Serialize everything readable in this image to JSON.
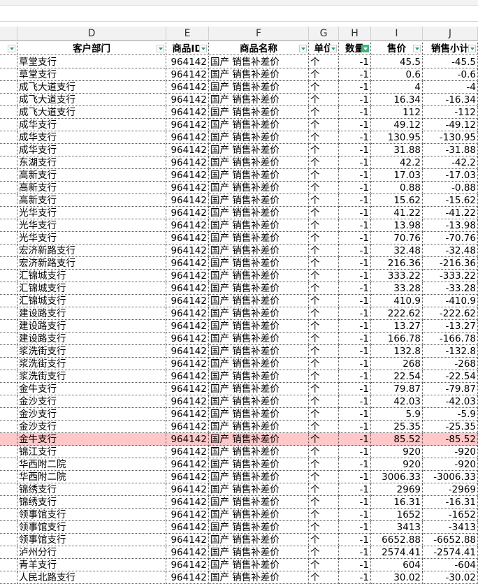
{
  "columns": [
    "D",
    "E",
    "F",
    "G",
    "H",
    "I",
    "J"
  ],
  "headers": [
    "客户部门",
    "商品ID",
    "商品名称",
    "单位",
    "数量",
    "售价",
    "销售小计"
  ],
  "filter_active_column": "H",
  "highlight_color": "#ffc7c7",
  "rows": [
    [
      "草堂支行",
      "964142",
      "国产 销售补差价",
      "个",
      "-1",
      "45.5",
      "-45.5"
    ],
    [
      "草堂支行",
      "964142",
      "国产 销售补差价",
      "个",
      "-1",
      "0.6",
      "-0.6"
    ],
    [
      "成飞大道支行",
      "964142",
      "国产 销售补差价",
      "个",
      "-1",
      "4",
      "-4"
    ],
    [
      "成飞大道支行",
      "964142",
      "国产 销售补差价",
      "个",
      "-1",
      "16.34",
      "-16.34"
    ],
    [
      "成飞大道支行",
      "964142",
      "国产 销售补差价",
      "个",
      "-1",
      "112",
      "-112"
    ],
    [
      "成华支行",
      "964142",
      "国产 销售补差价",
      "个",
      "-1",
      "49.12",
      "-49.12"
    ],
    [
      "成华支行",
      "964142",
      "国产 销售补差价",
      "个",
      "-1",
      "130.95",
      "-130.95"
    ],
    [
      "成华支行",
      "964142",
      "国产 销售补差价",
      "个",
      "-1",
      "31.88",
      "-31.88"
    ],
    [
      "东湖支行",
      "964142",
      "国产 销售补差价",
      "个",
      "-1",
      "42.2",
      "-42.2"
    ],
    [
      "高新支行",
      "964142",
      "国产 销售补差价",
      "个",
      "-1",
      "17.03",
      "-17.03"
    ],
    [
      "高新支行",
      "964142",
      "国产 销售补差价",
      "个",
      "-1",
      "0.88",
      "-0.88"
    ],
    [
      "高新支行",
      "964142",
      "国产 销售补差价",
      "个",
      "-1",
      "15.62",
      "-15.62"
    ],
    [
      "光华支行",
      "964142",
      "国产 销售补差价",
      "个",
      "-1",
      "41.22",
      "-41.22"
    ],
    [
      "光华支行",
      "964142",
      "国产 销售补差价",
      "个",
      "-1",
      "13.98",
      "-13.98"
    ],
    [
      "光华支行",
      "964142",
      "国产 销售补差价",
      "个",
      "-1",
      "70.76",
      "-70.76"
    ],
    [
      "宏济新路支行",
      "964142",
      "国产 销售补差价",
      "个",
      "-1",
      "32.48",
      "-32.48"
    ],
    [
      "宏济新路支行",
      "964142",
      "国产 销售补差价",
      "个",
      "-1",
      "216.36",
      "-216.36"
    ],
    [
      "汇锦城支行",
      "964142",
      "国产 销售补差价",
      "个",
      "-1",
      "333.22",
      "-333.22"
    ],
    [
      "汇锦城支行",
      "964142",
      "国产 销售补差价",
      "个",
      "-1",
      "33.28",
      "-33.28"
    ],
    [
      "汇锦城支行",
      "964142",
      "国产 销售补差价",
      "个",
      "-1",
      "410.9",
      "-410.9"
    ],
    [
      "建设路支行",
      "964142",
      "国产 销售补差价",
      "个",
      "-1",
      "222.62",
      "-222.62"
    ],
    [
      "建设路支行",
      "964142",
      "国产 销售补差价",
      "个",
      "-1",
      "13.27",
      "-13.27"
    ],
    [
      "建设路支行",
      "964142",
      "国产 销售补差价",
      "个",
      "-1",
      "166.78",
      "-166.78"
    ],
    [
      "浆洗街支行",
      "964142",
      "国产 销售补差价",
      "个",
      "-1",
      "132.8",
      "-132.8"
    ],
    [
      "浆洗街支行",
      "964142",
      "国产 销售补差价",
      "个",
      "-1",
      "268",
      "-268"
    ],
    [
      "浆洗街支行",
      "964142",
      "国产 销售补差价",
      "个",
      "-1",
      "22.54",
      "-22.54"
    ],
    [
      "金牛支行",
      "964142",
      "国产 销售补差价",
      "个",
      "-1",
      "79.87",
      "-79.87"
    ],
    [
      "金沙支行",
      "964142",
      "国产 销售补差价",
      "个",
      "-1",
      "42.03",
      "-42.03"
    ],
    [
      "金沙支行",
      "964142",
      "国产 销售补差价",
      "个",
      "-1",
      "5.9",
      "-5.9"
    ],
    [
      "金沙支行",
      "964142",
      "国产 销售补差价",
      "个",
      "-1",
      "25.35",
      "-25.35"
    ],
    [
      "金牛支行",
      "964142",
      "国产 销售补差价",
      "个",
      "-1",
      "85.52",
      "-85.52"
    ],
    [
      "锦江支行",
      "964142",
      "国产 销售补差价",
      "个",
      "-1",
      "920",
      "-920"
    ],
    [
      "华西附二院",
      "964142",
      "国产 销售补差价",
      "个",
      "-1",
      "920",
      "-920"
    ],
    [
      "华西附二院",
      "964142",
      "国产 销售补差价",
      "个",
      "-1",
      "3006.33",
      "-3006.33"
    ],
    [
      "锦绣支行",
      "964142",
      "国产 销售补差价",
      "个",
      "-1",
      "2969",
      "-2969"
    ],
    [
      "锦绣支行",
      "964142",
      "国产 销售补差价",
      "个",
      "-1",
      "16.31",
      "-16.31"
    ],
    [
      "领事馆支行",
      "964142",
      "国产 销售补差价",
      "个",
      "-1",
      "1652",
      "-1652"
    ],
    [
      "领事馆支行",
      "964142",
      "国产 销售补差价",
      "个",
      "-1",
      "3413",
      "-3413"
    ],
    [
      "领事馆支行",
      "964142",
      "国产 销售补差价",
      "个",
      "-1",
      "6652.88",
      "-6652.88"
    ],
    [
      "泸州分行",
      "964142",
      "国产 销售补差价",
      "个",
      "-1",
      "2574.41",
      "-2574.41"
    ],
    [
      "青羊支行",
      "964142",
      "国产 销售补差价",
      "个",
      "-1",
      "604",
      "-604"
    ],
    [
      "人民北路支行",
      "964142",
      "国产 销售补差价",
      "个",
      "-1",
      "30.02",
      "-30.02"
    ]
  ],
  "highlighted_row": 30
}
